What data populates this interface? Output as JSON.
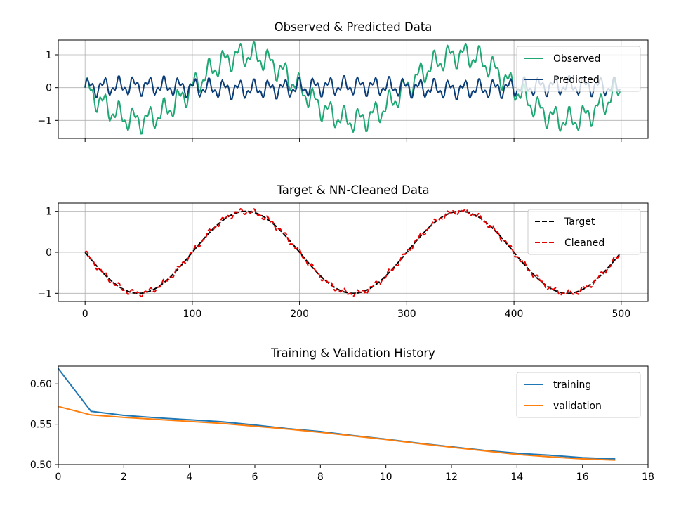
{
  "chart_data": [
    {
      "type": "line",
      "title": "Observed & Predicted Data",
      "xlabel": "",
      "ylabel": "",
      "xlim": [
        -25,
        525
      ],
      "ylim": [
        -1.55,
        1.45
      ],
      "x_ticks": [
        0,
        100,
        200,
        300,
        400,
        500
      ],
      "x_tick_labels_visible": false,
      "y_ticks": [
        -1,
        0,
        1
      ],
      "y_tick_labels": [
        "−1",
        "0",
        "1"
      ],
      "grid": true,
      "legend_position": "top-right",
      "series": [
        {
          "name": "Observed",
          "color": "#1fa774",
          "linestyle": "solid",
          "generator": {
            "n": 500,
            "components": [
              {
                "amp": -1.0,
                "period": 200
              },
              {
                "amp": 0.28,
                "period": 14
              },
              {
                "amp": 0.16,
                "period": 6
              }
            ]
          }
        },
        {
          "name": "Predicted",
          "color": "#0b3d77",
          "linestyle": "solid",
          "generator": {
            "n": 500,
            "components": [
              {
                "amp": 0.05,
                "period": 200
              },
              {
                "amp": 0.2,
                "period": 14
              },
              {
                "amp": 0.13,
                "period": 6
              }
            ]
          }
        }
      ]
    },
    {
      "type": "line",
      "title": "Target & NN-Cleaned Data",
      "xlabel": "",
      "ylabel": "",
      "xlim": [
        -25,
        525
      ],
      "ylim": [
        -1.2,
        1.2
      ],
      "x_ticks": [
        0,
        100,
        200,
        300,
        400,
        500
      ],
      "x_tick_labels": [
        "0",
        "100",
        "200",
        "300",
        "400",
        "500"
      ],
      "y_ticks": [
        -1,
        0,
        1
      ],
      "y_tick_labels": [
        "−1",
        "0",
        "1"
      ],
      "grid": true,
      "legend_position": "top-right",
      "series": [
        {
          "name": "Target",
          "color": "#000000",
          "linestyle": "dashed",
          "generator": {
            "n": 500,
            "components": [
              {
                "amp": -1.0,
                "period": 200
              }
            ]
          }
        },
        {
          "name": "Cleaned",
          "color": "#e50000",
          "linestyle": "dashed",
          "generator": {
            "n": 500,
            "components": [
              {
                "amp": -1.0,
                "period": 200
              },
              {
                "amp": 0.05,
                "period": 14
              },
              {
                "amp": 0.04,
                "period": 6
              }
            ]
          }
        }
      ]
    },
    {
      "type": "line",
      "title": "Training & Validation History",
      "xlabel": "",
      "ylabel": "",
      "xlim": [
        0,
        18
      ],
      "ylim": [
        0.5,
        0.622
      ],
      "x_ticks": [
        0,
        2,
        4,
        6,
        8,
        10,
        12,
        14,
        16,
        18
      ],
      "x_tick_labels": [
        "0",
        "2",
        "4",
        "6",
        "8",
        "10",
        "12",
        "14",
        "16",
        "18"
      ],
      "y_ticks": [
        0.5,
        0.55,
        0.6
      ],
      "y_tick_labels": [
        "0.50",
        "0.55",
        "0.60"
      ],
      "grid": false,
      "legend_position": "top-right",
      "x": [
        0,
        1,
        2,
        3,
        4,
        5,
        6,
        7,
        8,
        9,
        10,
        11,
        12,
        13,
        14,
        15,
        16,
        17
      ],
      "series": [
        {
          "name": "training",
          "color": "#1f77b4",
          "linestyle": "solid",
          "values": [
            0.619,
            0.566,
            0.561,
            0.558,
            0.5555,
            0.553,
            0.549,
            0.5445,
            0.541,
            0.536,
            0.5315,
            0.5265,
            0.522,
            0.5175,
            0.514,
            0.5115,
            0.5085,
            0.507
          ]
        },
        {
          "name": "validation",
          "color": "#ff7f0e",
          "linestyle": "solid",
          "values": [
            0.572,
            0.5615,
            0.5585,
            0.556,
            0.5535,
            0.551,
            0.5475,
            0.544,
            0.54,
            0.5355,
            0.531,
            0.526,
            0.5215,
            0.517,
            0.5125,
            0.5095,
            0.507,
            0.5055
          ]
        }
      ]
    }
  ]
}
